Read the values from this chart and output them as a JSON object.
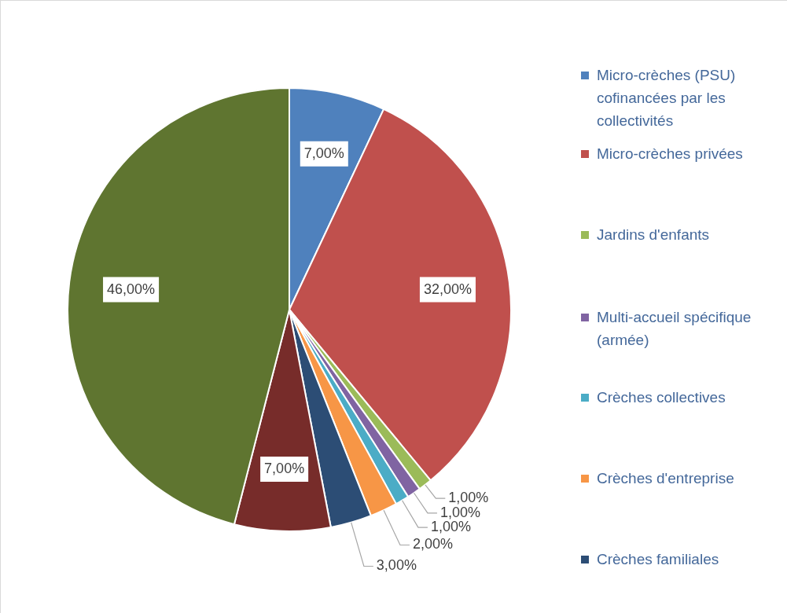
{
  "chart_data": {
    "type": "pie",
    "categories": [
      "Micro-crèches (PSU) cofinancées par les collectivités",
      "Micro-crèches privées",
      "Jardins d'enfants",
      "Multi-accueil spécifique (armée)",
      "Crèches collectives",
      "Crèches d'entreprise",
      "Crèches familiales",
      null,
      null
    ],
    "values": [
      7,
      32,
      1,
      1,
      1,
      2,
      3,
      7,
      46
    ],
    "value_labels": [
      "7,00%",
      "32,00%",
      "1,00%",
      "1,00%",
      "1,00%",
      "2,00%",
      "3,00%",
      "7,00%",
      "46,00%"
    ],
    "colors": [
      "#4f81bd",
      "#c0504d",
      "#9bbb59",
      "#8064a2",
      "#4bacc6",
      "#f79646",
      "#2c4d75",
      "#772c2a",
      "#5f7530"
    ],
    "legend": "right"
  }
}
